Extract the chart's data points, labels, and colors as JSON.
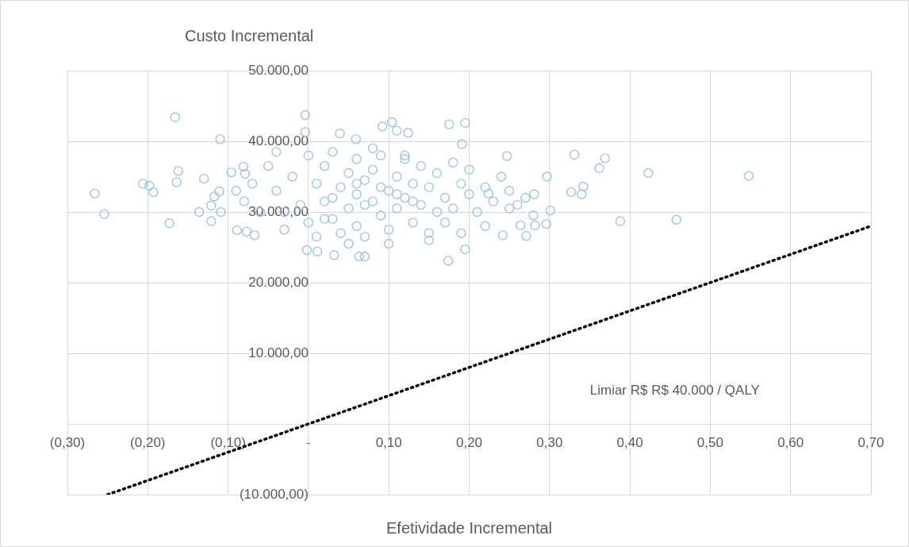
{
  "chart_data": {
    "type": "scatter",
    "xlabel": "Efetividade Incremental",
    "ylabel": "Custo Incremental",
    "xlim": [
      -0.3,
      0.7
    ],
    "ylim": [
      -10000,
      50000
    ],
    "xticks": [
      {
        "value": -0.3,
        "label": "(0,30)"
      },
      {
        "value": -0.2,
        "label": "(0,20)"
      },
      {
        "value": -0.1,
        "label": "(0,10)"
      },
      {
        "value": 0,
        "label": "-"
      },
      {
        "value": 0.1,
        "label": "0,10"
      },
      {
        "value": 0.2,
        "label": "0,20"
      },
      {
        "value": 0.3,
        "label": "0,30"
      },
      {
        "value": 0.4,
        "label": "0,40"
      },
      {
        "value": 0.5,
        "label": "0,50"
      },
      {
        "value": 0.6,
        "label": "0,60"
      },
      {
        "value": 0.7,
        "label": "0,70"
      }
    ],
    "yticks": [
      {
        "value": -10000,
        "label": "(10.000,00)"
      },
      {
        "value": 0,
        "label": "-"
      },
      {
        "value": 10000,
        "label": "10.000,00"
      },
      {
        "value": 20000,
        "label": "20.000,00"
      },
      {
        "value": 30000,
        "label": "30.000,00"
      },
      {
        "value": 40000,
        "label": "40.000,00"
      },
      {
        "value": 50000,
        "label": "50.000,00"
      }
    ],
    "grid": true,
    "legend": false,
    "marker": "circle",
    "series": [
      {
        "color": "#9dc3e6",
        "x": [
          -0.266,
          -0.254,
          -0.206,
          -0.198,
          -0.193,
          -0.173,
          -0.166,
          -0.162,
          -0.164,
          -0.13,
          -0.136,
          -0.121,
          -0.121,
          -0.117,
          -0.111,
          -0.11,
          -0.109,
          -0.096,
          -0.09,
          -0.089,
          -0.081,
          -0.077,
          -0.067,
          -0.079,
          -0.004,
          -0.004,
          0.039,
          0.059,
          0.092,
          0.104,
          0.11,
          0.124,
          0.175,
          0.195,
          0.191,
          0.174,
          0.07,
          0.063,
          0.032,
          0.011,
          -0.002,
          0.195,
          0.247,
          0.224,
          0.242,
          0.271,
          0.281,
          0.297,
          0.296,
          0.301,
          0.331,
          0.327,
          0.342,
          0.34,
          0.362,
          0.369,
          0.388,
          0.423,
          0.458,
          0.548,
          0.282,
          0.264,
          -0.05,
          -0.04,
          -0.03,
          -0.03,
          -0.02,
          -0.01,
          0.0,
          0.0,
          0.01,
          0.01,
          0.02,
          0.02,
          0.03,
          0.03,
          0.04,
          0.04,
          0.05,
          0.05,
          0.06,
          0.06,
          0.06,
          0.07,
          0.07,
          0.08,
          0.08,
          0.09,
          0.09,
          0.1,
          0.1,
          0.11,
          0.11,
          0.12,
          0.12,
          0.13,
          0.13,
          0.14,
          0.14,
          0.15,
          0.15,
          0.16,
          0.16,
          0.17,
          0.17,
          0.18,
          0.18,
          0.19,
          0.19,
          0.2,
          0.2,
          0.21,
          0.22,
          0.22,
          0.23,
          0.24,
          0.25,
          0.25,
          0.26,
          0.27,
          0.28,
          -0.06,
          -0.07,
          -0.08,
          -0.04,
          0.05,
          0.1,
          0.15,
          0.08,
          0.12,
          0.03,
          0.07,
          0.09,
          0.11,
          0.13,
          0.02,
          0.06
        ],
        "values": [
          32600,
          29700,
          34000,
          33700,
          32800,
          28400,
          43400,
          35800,
          34200,
          34700,
          30000,
          30900,
          28700,
          32200,
          32900,
          40300,
          30000,
          35600,
          33000,
          27400,
          36400,
          27200,
          26700,
          35400,
          43700,
          41300,
          41100,
          40300,
          42100,
          42700,
          41500,
          41200,
          42400,
          42600,
          39600,
          23100,
          23700,
          23700,
          23900,
          24400,
          24600,
          24700,
          37900,
          32600,
          26700,
          26600,
          32500,
          35000,
          28300,
          30200,
          38100,
          32800,
          33600,
          32500,
          36200,
          37600,
          28700,
          35500,
          28900,
          35100,
          28100,
          28100,
          36500,
          33000,
          30000,
          27500,
          35000,
          31000,
          38000,
          28500,
          34000,
          26500,
          36500,
          31500,
          29000,
          38500,
          33500,
          27000,
          35500,
          30500,
          32500,
          37500,
          28000,
          34500,
          26500,
          31500,
          36000,
          29500,
          38000,
          33000,
          27500,
          35000,
          30500,
          32000,
          37500,
          28500,
          34000,
          31000,
          36500,
          27000,
          33500,
          30000,
          35500,
          32000,
          28500,
          37000,
          30500,
          34000,
          27000,
          32500,
          36000,
          30000,
          33500,
          28000,
          31500,
          35000,
          30500,
          33000,
          31000,
          32000,
          29500,
          30000,
          34000,
          31500,
          38500,
          25500,
          25500,
          26000,
          39000,
          38000,
          32000,
          31000,
          33500,
          32500,
          31500,
          29000,
          34000
        ]
      },
      {
        "type": "line",
        "color": "#000000",
        "line_style": "dotted",
        "marker": "none",
        "x": [
          -0.25,
          0.7
        ],
        "values": [
          -10000,
          28000
        ]
      }
    ],
    "annotations": [
      "Limiar R$ R$ 40.000 / QALY"
    ]
  }
}
